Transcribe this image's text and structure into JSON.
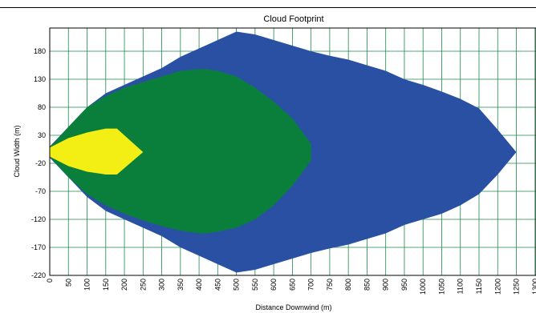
{
  "chart_data": {
    "type": "area",
    "title": "Cloud Footprint",
    "xlabel": "Distance Downwind (m)",
    "ylabel": "Cloud Width (m)",
    "xlim": [
      0,
      1300
    ],
    "ylim": [
      -220,
      220
    ],
    "x_ticks": [
      0,
      50,
      100,
      150,
      200,
      250,
      300,
      350,
      400,
      450,
      500,
      550,
      600,
      650,
      700,
      750,
      800,
      850,
      900,
      950,
      1000,
      1050,
      1100,
      1150,
      1200,
      1250,
      1300
    ],
    "y_ticks": [
      180,
      130,
      80,
      30,
      -20,
      -70,
      -120,
      -170,
      -220
    ],
    "grid": true,
    "colors": {
      "outer": "#2a50a4",
      "middle": "#0a7f3c",
      "inner": "#f3ef14",
      "grid": "#1d8a4a",
      "background": "#ffffff"
    },
    "series": [
      {
        "values": [
          [
            0,
            10
          ],
          [
            50,
            45
          ],
          [
            100,
            80
          ],
          [
            150,
            105
          ],
          [
            200,
            120
          ],
          [
            250,
            135
          ],
          [
            300,
            150
          ],
          [
            350,
            170
          ],
          [
            400,
            185
          ],
          [
            450,
            200
          ],
          [
            500,
            215
          ],
          [
            550,
            210
          ],
          [
            600,
            200
          ],
          [
            650,
            190
          ],
          [
            700,
            180
          ],
          [
            750,
            172
          ],
          [
            800,
            165
          ],
          [
            850,
            155
          ],
          [
            900,
            145
          ],
          [
            950,
            130
          ],
          [
            1000,
            120
          ],
          [
            1050,
            108
          ],
          [
            1100,
            95
          ],
          [
            1150,
            78
          ],
          [
            1200,
            40
          ],
          [
            1250,
            0
          ],
          [
            1200,
            -40
          ],
          [
            1150,
            -75
          ],
          [
            1100,
            -95
          ],
          [
            1050,
            -110
          ],
          [
            1000,
            -120
          ],
          [
            950,
            -130
          ],
          [
            900,
            -145
          ],
          [
            850,
            -155
          ],
          [
            800,
            -165
          ],
          [
            750,
            -172
          ],
          [
            700,
            -180
          ],
          [
            650,
            -190
          ],
          [
            600,
            -200
          ],
          [
            550,
            -210
          ],
          [
            500,
            -215
          ],
          [
            450,
            -200
          ],
          [
            400,
            -185
          ],
          [
            350,
            -170
          ],
          [
            300,
            -150
          ],
          [
            250,
            -135
          ],
          [
            200,
            -120
          ],
          [
            150,
            -105
          ],
          [
            100,
            -80
          ],
          [
            50,
            -45
          ],
          [
            0,
            -10
          ]
        ]
      },
      {
        "values": [
          [
            0,
            8
          ],
          [
            50,
            45
          ],
          [
            100,
            80
          ],
          [
            150,
            100
          ],
          [
            200,
            115
          ],
          [
            250,
            125
          ],
          [
            300,
            135
          ],
          [
            350,
            145
          ],
          [
            400,
            148
          ],
          [
            420,
            148
          ],
          [
            450,
            145
          ],
          [
            500,
            135
          ],
          [
            550,
            115
          ],
          [
            600,
            90
          ],
          [
            650,
            60
          ],
          [
            700,
            15
          ],
          [
            700,
            -15
          ],
          [
            650,
            -60
          ],
          [
            600,
            -95
          ],
          [
            550,
            -120
          ],
          [
            500,
            -135
          ],
          [
            450,
            -142
          ],
          [
            420,
            -145
          ],
          [
            400,
            -145
          ],
          [
            350,
            -140
          ],
          [
            300,
            -132
          ],
          [
            250,
            -122
          ],
          [
            200,
            -110
          ],
          [
            150,
            -95
          ],
          [
            100,
            -75
          ],
          [
            50,
            -45
          ],
          [
            0,
            -8
          ]
        ]
      },
      {
        "values": [
          [
            0,
            8
          ],
          [
            50,
            25
          ],
          [
            100,
            35
          ],
          [
            150,
            42
          ],
          [
            180,
            42
          ],
          [
            250,
            0
          ],
          [
            180,
            -40
          ],
          [
            150,
            -40
          ],
          [
            100,
            -35
          ],
          [
            50,
            -25
          ],
          [
            0,
            -8
          ]
        ]
      }
    ]
  }
}
